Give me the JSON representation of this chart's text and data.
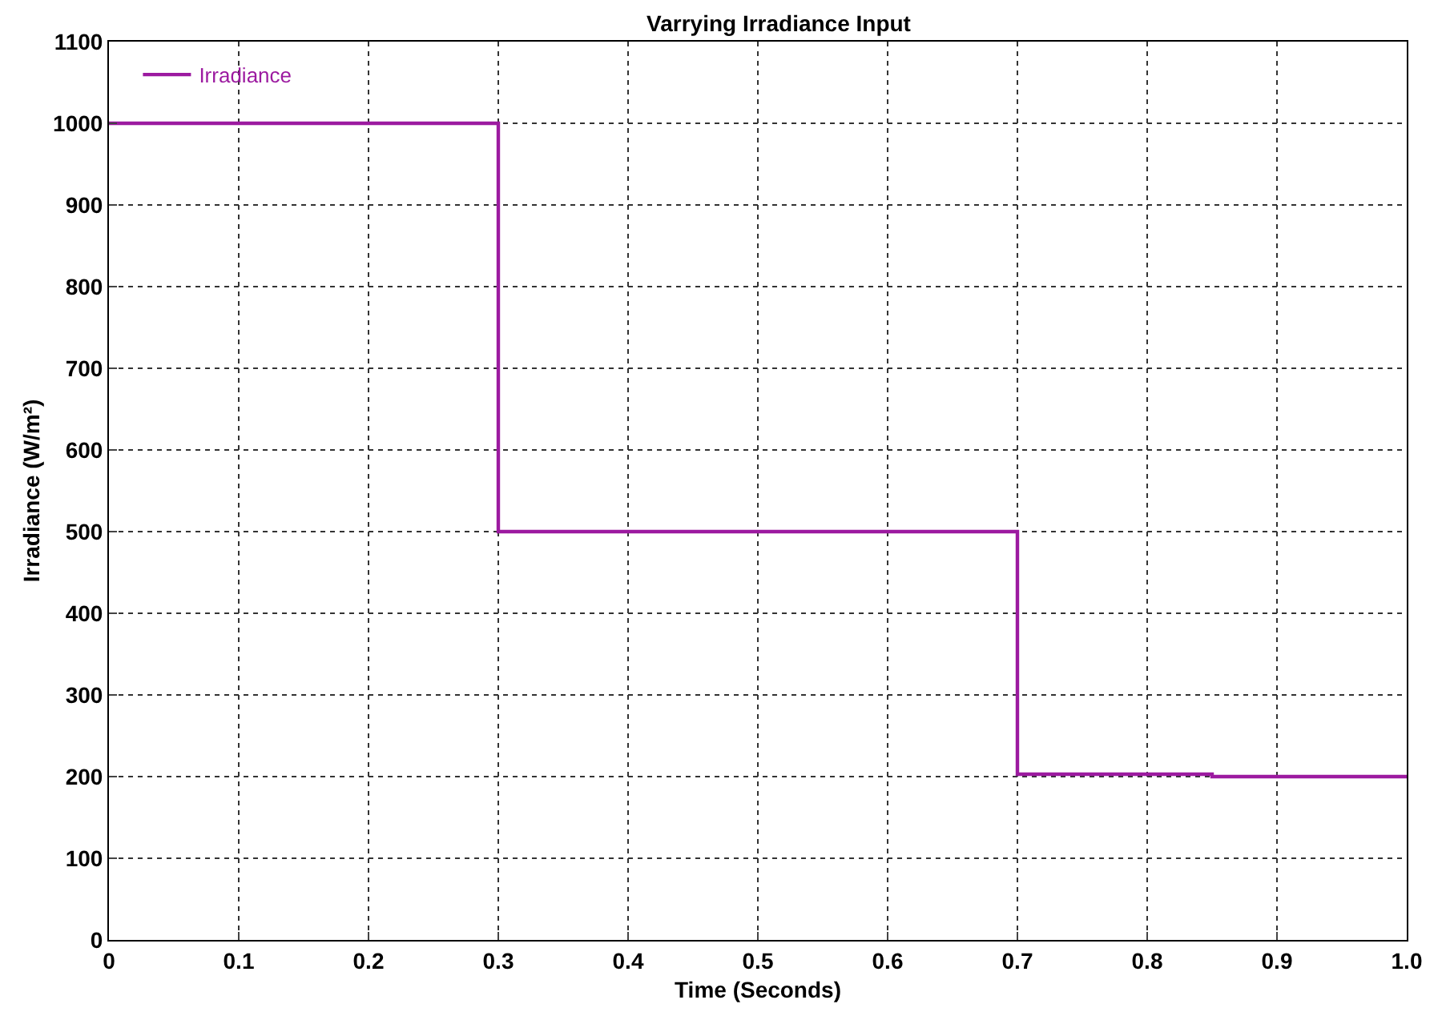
{
  "chart_data": {
    "type": "step",
    "title": "Varrying Irradiance Input",
    "xlabel": "Time (Seconds)",
    "ylabel": "Irradiance (W/m²)",
    "x": [
      0,
      0.3,
      0.7,
      0.85,
      1
    ],
    "series": [
      {
        "name": "Irradiance",
        "color": "#9c1aa0",
        "values": [
          1000,
          500,
          203,
          200,
          200
        ]
      }
    ],
    "xlim": [
      0,
      1
    ],
    "xticks": [
      0,
      0.1,
      0.2,
      0.3,
      0.4,
      0.5,
      0.6,
      0.7,
      0.8,
      0.9,
      {
        "value": 1,
        "label": "1.0"
      }
    ],
    "ylim": [
      0,
      1100
    ],
    "yticks": [
      0,
      100,
      200,
      300,
      400,
      500,
      600,
      700,
      800,
      900,
      1000,
      1100
    ],
    "grid": true,
    "legend": "top left",
    "line_style": "solid"
  }
}
